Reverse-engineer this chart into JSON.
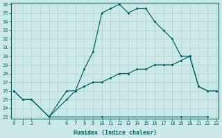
{
  "xlabel": "Humidex (Indice chaleur)",
  "bg_color": "#cde8e8",
  "grid_color": "#b0d0d0",
  "line_color": "#006666",
  "xticks": [
    0,
    1,
    2,
    4,
    6,
    7,
    8,
    9,
    10,
    11,
    12,
    13,
    14,
    15,
    16,
    17,
    18,
    19,
    20,
    21,
    22,
    23
  ],
  "yticks": [
    23,
    24,
    25,
    26,
    27,
    28,
    29,
    30,
    31,
    32,
    33,
    34,
    35,
    36
  ],
  "ylim": [
    23,
    36
  ],
  "xlim": [
    -0.3,
    23.3
  ],
  "line1_x": [
    0,
    1,
    2,
    4,
    6,
    7,
    8,
    9,
    10,
    11,
    12,
    13,
    14,
    15,
    16,
    17,
    18,
    19,
    20,
    21,
    22,
    23
  ],
  "line1_y": [
    26,
    25,
    25,
    23,
    25,
    26,
    28.5,
    30.5,
    35,
    35.5,
    36,
    35,
    35.5,
    35.5,
    34,
    33,
    32,
    30,
    30,
    26.5,
    26,
    26
  ],
  "line2_x": [
    4,
    10,
    19,
    22
  ],
  "line2_y": [
    23,
    23,
    23,
    23
  ],
  "line3_x": [
    0,
    1,
    2,
    4,
    6,
    7,
    8,
    9,
    10,
    11,
    12,
    13,
    14,
    15,
    16,
    17,
    18,
    19,
    20,
    21,
    22,
    23
  ],
  "line3_y": [
    26,
    25,
    25,
    23,
    26,
    26,
    26.5,
    27,
    27,
    27.5,
    28,
    28,
    28.5,
    28.5,
    29,
    29,
    29,
    29.5,
    30,
    26.5,
    26,
    26
  ]
}
